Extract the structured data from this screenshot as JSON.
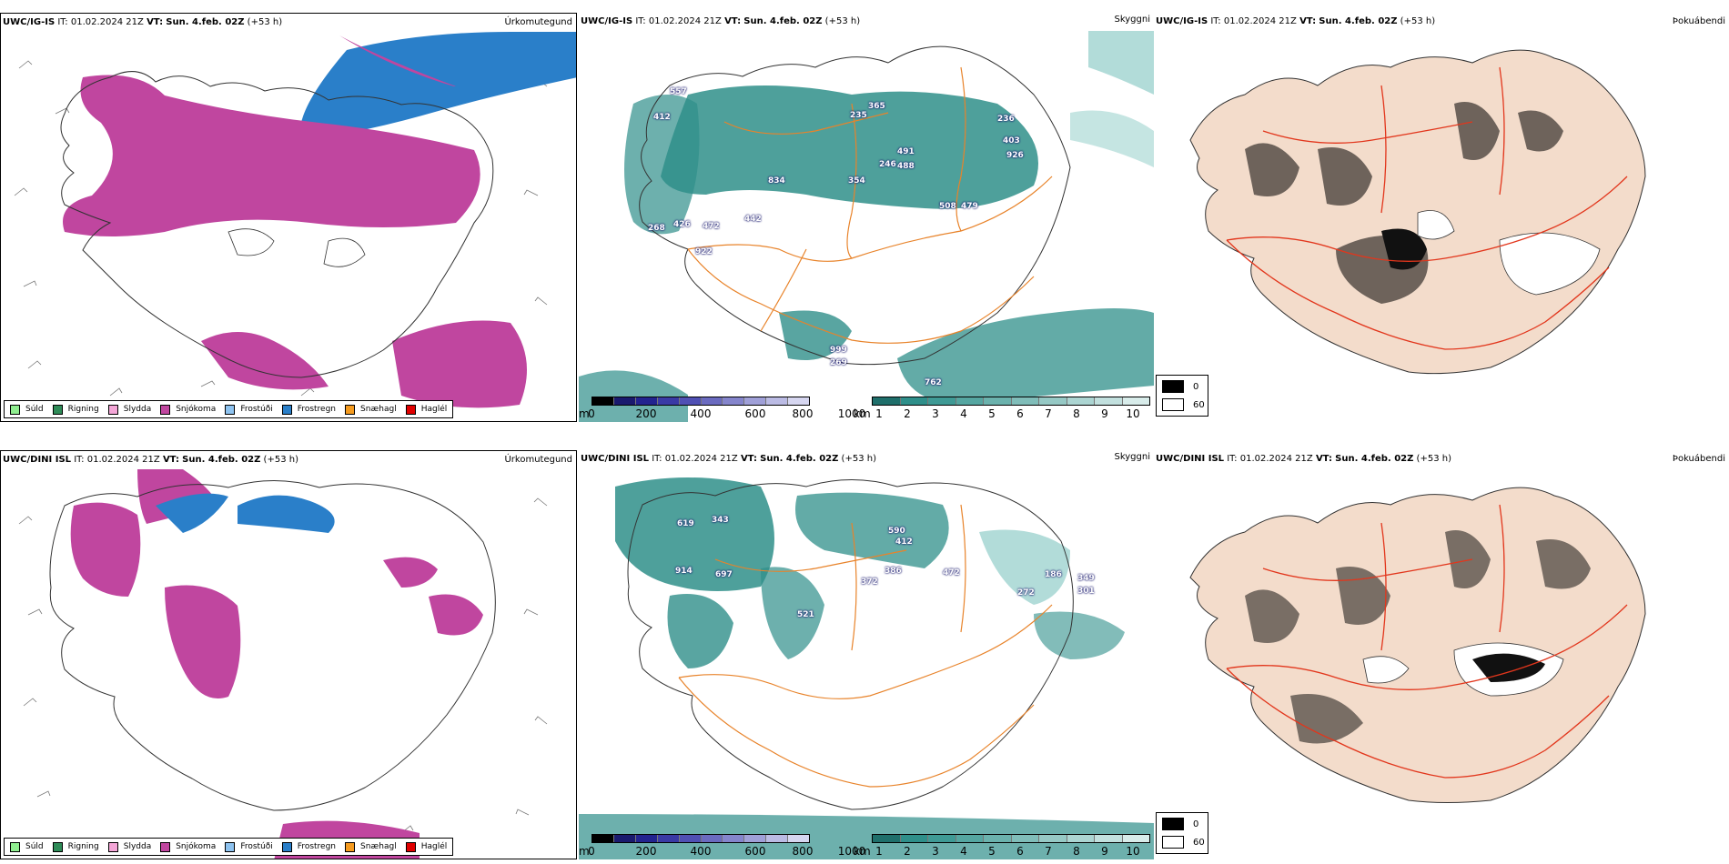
{
  "rows": [
    {
      "model": "UWC/IG-IS",
      "it_label": "IT:",
      "it_value": "01.02.2024 21Z",
      "vt_label": "VT:",
      "vt_value": "Sun. 4.feb. 02Z",
      "offset": "(+53 h)",
      "precip_title": "Úrkomutegund",
      "vis_title": "Skyggni",
      "cloud_title": "Þokuábendi",
      "labels": [
        "557",
        "412",
        "834",
        "365",
        "235",
        "491",
        "354",
        "246",
        "488",
        "236",
        "403",
        "926",
        "508",
        "479",
        "426",
        "268",
        "442",
        "472",
        "922",
        "999",
        "269",
        "762"
      ]
    },
    {
      "model": "UWC/DINI ISL",
      "it_label": "IT:",
      "it_value": "01.02.2024 21Z",
      "vt_label": "VT:",
      "vt_value": "Sun. 4.feb. 02Z",
      "offset": "(+53 h)",
      "precip_title": "Úrkomutegund",
      "vis_title": "Skyggni",
      "cloud_title": "Þokuábendi",
      "labels": [
        "619",
        "343",
        "914",
        "697",
        "521",
        "590",
        "412",
        "386",
        "372",
        "472",
        "186",
        "272",
        "349",
        "301"
      ]
    }
  ],
  "precip_legend": [
    {
      "label": "Súld",
      "color": "#90ee90"
    },
    {
      "label": "Rigning",
      "color": "#2e8b57"
    },
    {
      "label": "Slydda",
      "color": "#f4a6d7"
    },
    {
      "label": "Snjókoma",
      "color": "#c0469f"
    },
    {
      "label": "Frostúði",
      "color": "#8ec3f0"
    },
    {
      "label": "Frostregn",
      "color": "#2a7fc9"
    },
    {
      "label": "Snæhagl",
      "color": "#f59b1f"
    },
    {
      "label": "Haglél",
      "color": "#e00000"
    }
  ],
  "height_scale": {
    "unit": "m",
    "ticks": [
      "0",
      "200",
      "400",
      "600",
      "800",
      "1000"
    ]
  },
  "vis_scale": {
    "unit": "km",
    "ticks": [
      "1",
      "2",
      "3",
      "4",
      "5",
      "6",
      "7",
      "8",
      "9",
      "10"
    ]
  },
  "cloud_legend": {
    "dark": "0",
    "light": "60"
  },
  "colors": {
    "snow": "#c0469f",
    "freezing_rain": "#2a7fc9",
    "ice_pellets": "#f59b1f",
    "teal": "#2f8f8a",
    "teal_light": "#9fd3cf",
    "land_tan": "#f3dccb",
    "roads": "#e8832a",
    "roads_red": "#e2361c"
  }
}
